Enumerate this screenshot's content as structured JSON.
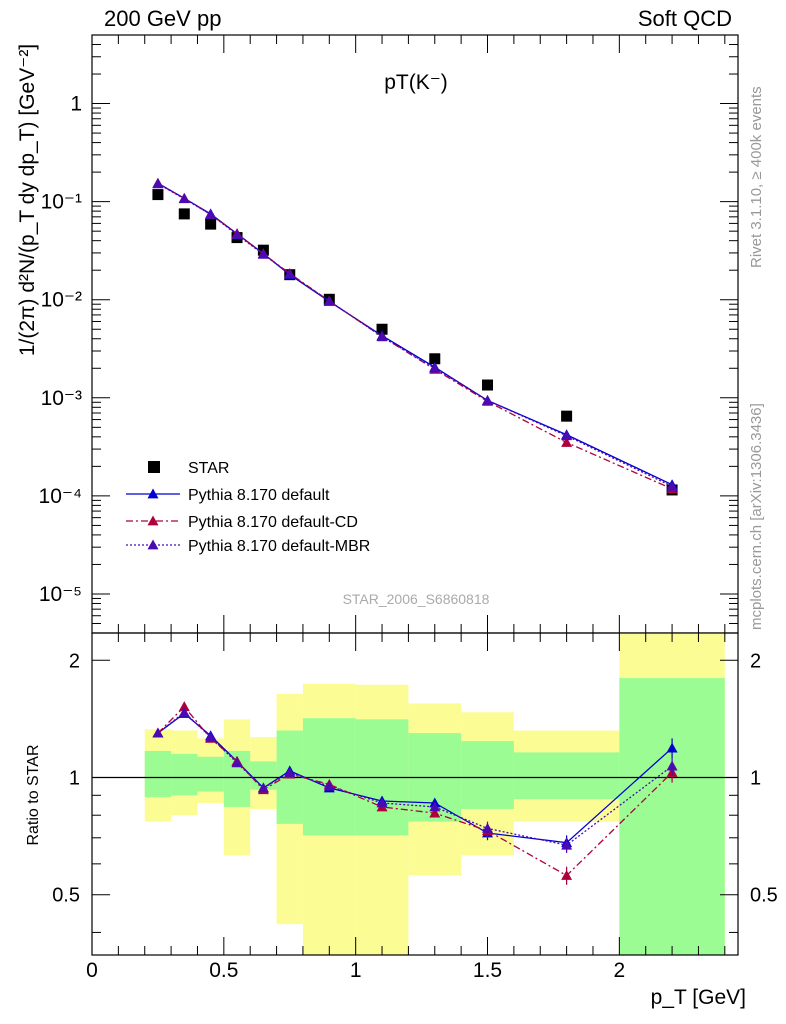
{
  "header": {
    "left": "200 GeV pp",
    "right": "Soft QCD"
  },
  "side_text": {
    "rivet": "Rivet 3.1.10, ≥ 400k events",
    "mcplots": "mcplots.cern.ch [arXiv:1306.3436]"
  },
  "colors": {
    "star": "#000000",
    "default": "#0000d0",
    "cd": "#b0003a",
    "mbr": "#4b0ab4",
    "band_inner": "#9cfc94",
    "band_outer": "#fcfc94"
  },
  "chart_data": [
    {
      "type": "scatter",
      "title": "pT(K⁻)",
      "watermark": "STAR_2006_S6860818",
      "ylabel": "1/(2π) d²N/(p_T dy dp_T) [GeV⁻²]",
      "xlabel": "p_T [GeV]",
      "yscale": "log",
      "xlim": [
        0,
        2.45
      ],
      "ylim": [
        4e-06,
        5
      ],
      "y_tick_labels": [
        "1",
        "10⁻¹",
        "10⁻²",
        "10⁻³",
        "10⁻⁴",
        "10⁻⁵"
      ],
      "legend_position": "lower-left",
      "series": [
        {
          "name": "STAR",
          "marker": "square",
          "x": [
            0.25,
            0.35,
            0.45,
            0.55,
            0.65,
            0.75,
            0.9,
            1.1,
            1.3,
            1.5,
            1.8,
            2.2
          ],
          "y": [
            0.118,
            0.075,
            0.059,
            0.043,
            0.032,
            0.018,
            0.0101,
            0.005,
            0.0025,
            0.00135,
            0.00065,
            0.000115
          ]
        },
        {
          "name": "Pythia 8.170 default",
          "marker": "triangle",
          "line": "solid",
          "x": [
            0.25,
            0.35,
            0.45,
            0.55,
            0.65,
            0.75,
            0.9,
            1.1,
            1.3,
            1.5,
            1.8,
            2.2
          ],
          "y": [
            0.154,
            0.108,
            0.075,
            0.047,
            0.0295,
            0.018,
            0.0096,
            0.0043,
            0.00205,
            0.00094,
            0.00042,
            0.00013
          ]
        },
        {
          "name": "Pythia 8.170 default-CD",
          "marker": "triangle",
          "line": "dashdot",
          "x": [
            0.25,
            0.35,
            0.45,
            0.55,
            0.65,
            0.75,
            0.9,
            1.1,
            1.3,
            1.5,
            1.8,
            2.2
          ],
          "y": [
            0.153,
            0.108,
            0.074,
            0.047,
            0.0293,
            0.0185,
            0.0097,
            0.0042,
            0.00195,
            0.00092,
            0.00035,
            0.000118
          ]
        },
        {
          "name": "Pythia 8.170 default-MBR",
          "marker": "triangle",
          "line": "dotted",
          "x": [
            0.25,
            0.35,
            0.45,
            0.55,
            0.65,
            0.75,
            0.9,
            1.1,
            1.3,
            1.5,
            1.8,
            2.2
          ],
          "y": [
            0.152,
            0.107,
            0.074,
            0.046,
            0.029,
            0.0183,
            0.0097,
            0.0042,
            0.002,
            0.00094,
            0.00041,
            0.000125
          ]
        }
      ]
    },
    {
      "type": "line",
      "ylabel": "Ratio to STAR",
      "xlabel": "p_T [GeV]",
      "yscale": "log",
      "xlim": [
        0,
        2.45
      ],
      "ylim": [
        0.35,
        2.35
      ],
      "x_ticks": [
        0,
        0.5,
        1,
        1.5,
        2
      ],
      "x_tick_labels": [
        "0",
        "0.5",
        "1",
        "1.5",
        "2"
      ],
      "y_ticks": [
        0.5,
        1,
        2
      ],
      "y_tick_labels": [
        "0.5",
        "1",
        "2"
      ],
      "bands": [
        {
          "x0": 0.2,
          "x1": 0.3,
          "inner": [
            0.89,
            1.17
          ],
          "outer": [
            0.77,
            1.33
          ]
        },
        {
          "x0": 0.3,
          "x1": 0.4,
          "inner": [
            0.9,
            1.15
          ],
          "outer": [
            0.8,
            1.32
          ]
        },
        {
          "x0": 0.4,
          "x1": 0.5,
          "inner": [
            0.92,
            1.13
          ],
          "outer": [
            0.86,
            1.26
          ]
        },
        {
          "x0": 0.5,
          "x1": 0.6,
          "inner": [
            0.84,
            1.17
          ],
          "outer": [
            0.63,
            1.41
          ]
        },
        {
          "x0": 0.6,
          "x1": 0.7,
          "inner": [
            0.93,
            1.1
          ],
          "outer": [
            0.83,
            1.27
          ]
        },
        {
          "x0": 0.7,
          "x1": 0.8,
          "inner": [
            0.76,
            1.32
          ],
          "outer": [
            0.42,
            1.64
          ]
        },
        {
          "x0": 0.8,
          "x1": 1.0,
          "inner": [
            0.71,
            1.42
          ],
          "outer": [
            0.35,
            1.74
          ]
        },
        {
          "x0": 1.0,
          "x1": 1.2,
          "inner": [
            0.71,
            1.41
          ],
          "outer": [
            0.35,
            1.73
          ]
        },
        {
          "x0": 1.2,
          "x1": 1.4,
          "inner": [
            0.77,
            1.3
          ],
          "outer": [
            0.56,
            1.55
          ]
        },
        {
          "x0": 1.4,
          "x1": 1.6,
          "inner": [
            0.83,
            1.24
          ],
          "outer": [
            0.63,
            1.47
          ]
        },
        {
          "x0": 1.6,
          "x1": 2.0,
          "inner": [
            0.88,
            1.16
          ],
          "outer": [
            0.77,
            1.32
          ]
        },
        {
          "x0": 2.0,
          "x1": 2.4,
          "inner": [
            0.35,
            1.8
          ],
          "outer": [
            0.35,
            2.35
          ]
        }
      ],
      "series": [
        {
          "name": "Pythia 8.170 default",
          "x": [
            0.25,
            0.35,
            0.45,
            0.55,
            0.65,
            0.75,
            0.9,
            1.1,
            1.3,
            1.5,
            1.8,
            2.2
          ],
          "y": [
            1.3,
            1.46,
            1.28,
            1.1,
            0.94,
            1.04,
            0.94,
            0.87,
            0.86,
            0.72,
            0.68,
            1.19
          ],
          "err": [
            0.02,
            0.02,
            0.02,
            0.02,
            0.02,
            0.02,
            0.02,
            0.02,
            0.02,
            0.03,
            0.03,
            0.07
          ]
        },
        {
          "name": "Pythia 8.170 default-CD",
          "x": [
            0.25,
            0.35,
            0.45,
            0.55,
            0.65,
            0.75,
            0.9,
            1.1,
            1.3,
            1.5,
            1.8,
            2.2
          ],
          "y": [
            1.3,
            1.52,
            1.26,
            1.1,
            0.93,
            1.02,
            0.96,
            0.84,
            0.81,
            0.73,
            0.56,
            1.03
          ],
          "err": [
            0.02,
            0.02,
            0.02,
            0.02,
            0.02,
            0.02,
            0.02,
            0.02,
            0.02,
            0.03,
            0.03,
            0.06
          ]
        },
        {
          "name": "Pythia 8.170 default-MBR",
          "x": [
            0.25,
            0.35,
            0.45,
            0.55,
            0.65,
            0.75,
            0.9,
            1.1,
            1.3,
            1.5,
            1.8,
            2.2
          ],
          "y": [
            1.3,
            1.47,
            1.27,
            1.09,
            0.94,
            1.03,
            0.95,
            0.86,
            0.84,
            0.74,
            0.67,
            1.07
          ],
          "err": [
            0.02,
            0.02,
            0.02,
            0.02,
            0.02,
            0.02,
            0.02,
            0.02,
            0.02,
            0.03,
            0.03,
            0.06
          ]
        }
      ]
    }
  ]
}
